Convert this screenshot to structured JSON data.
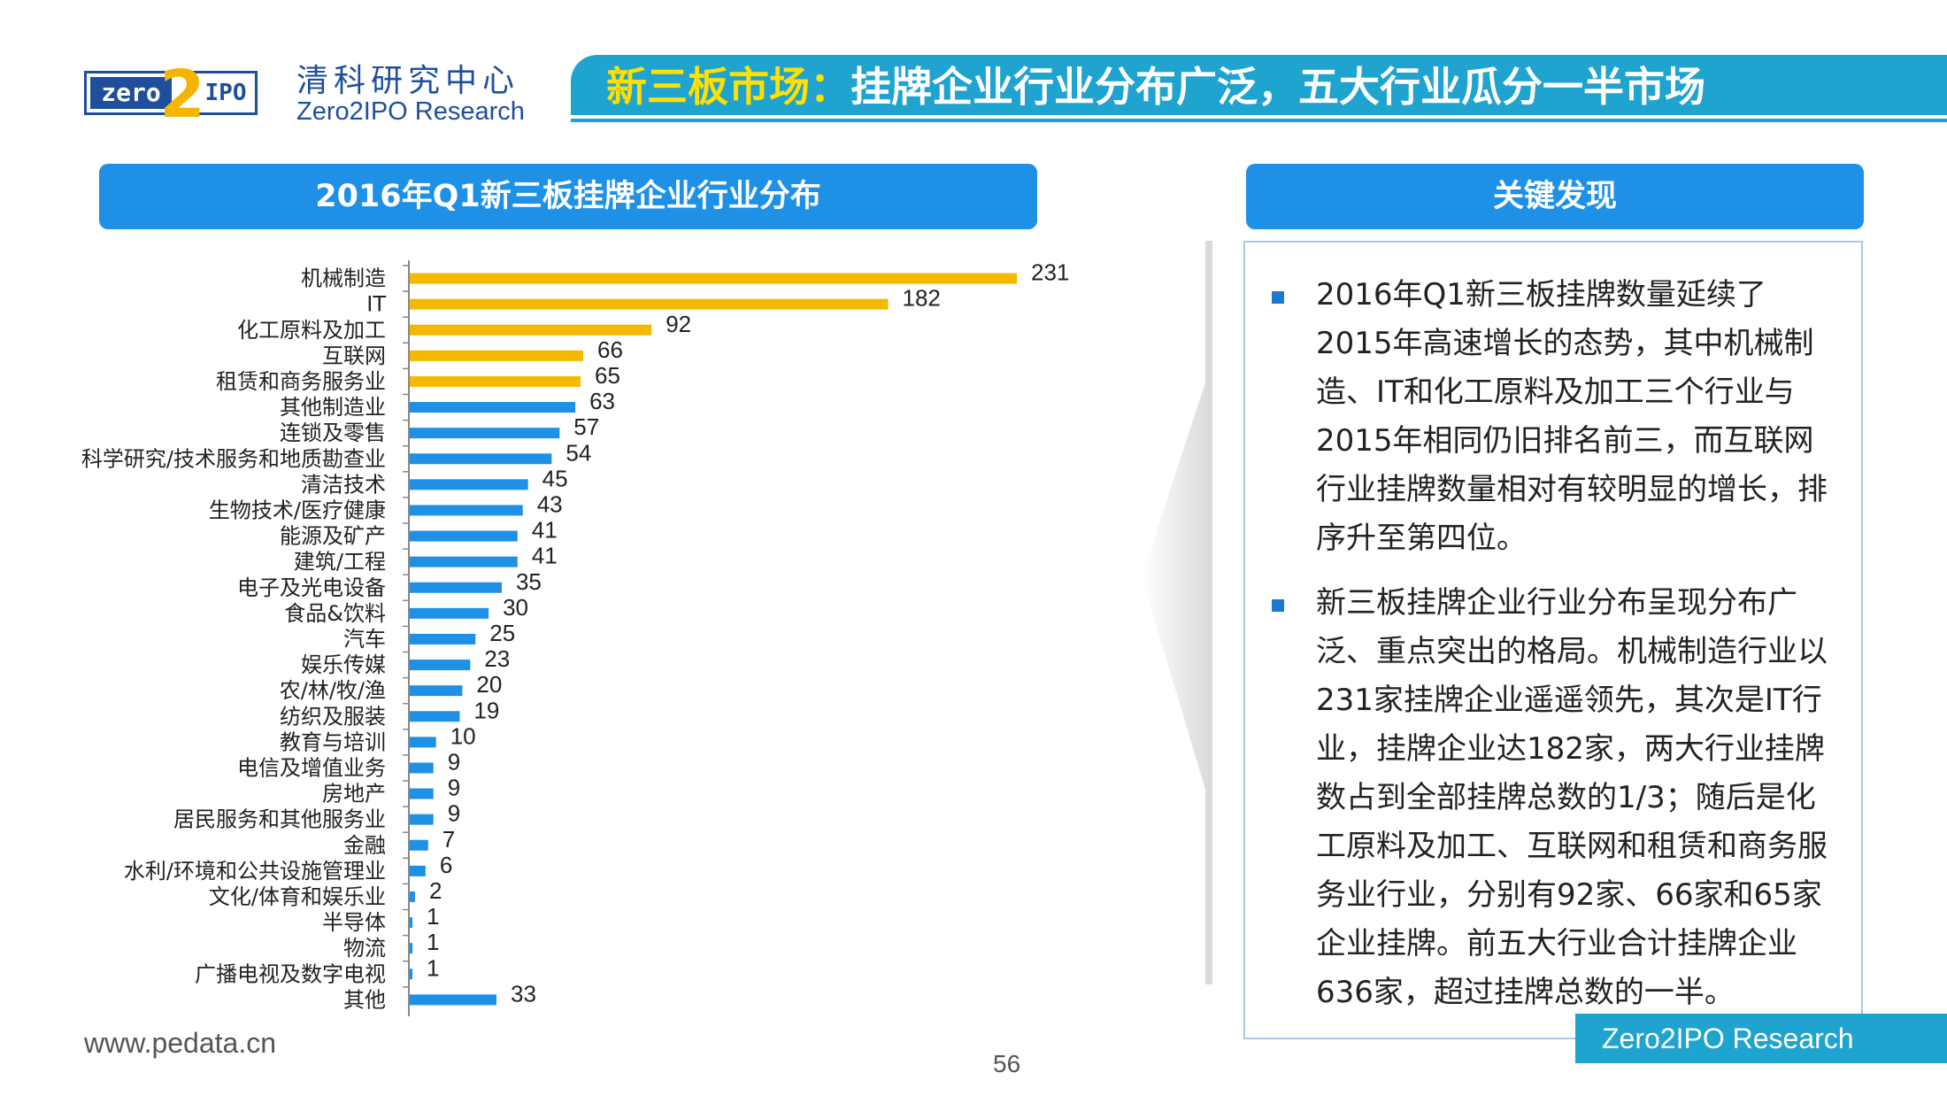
{
  "header": {
    "logo_left": "zero",
    "logo_mid": "2",
    "logo_right": "IPO",
    "brand_cn": "清科研究中心",
    "brand_en": "Zero2IPO Research",
    "title_highlight": "新三板市场：",
    "title_rest": "挂牌企业行业分布广泛，五大行业瓜分一半市场"
  },
  "chart_section": {
    "heading": "2016年Q1新三板挂牌企业行业分布"
  },
  "findings_section": {
    "heading": "关键发现",
    "bullets": [
      "2016年Q1新三板挂牌数量延续了2015年高速增长的态势，其中机械制造、IT和化工原料及加工三个行业与2015年相同仍旧排名前三，而互联网行业挂牌数量相对有较明显的增长，排序升至第四位。",
      "新三板挂牌企业行业分布呈现分布广泛、重点突出的格局。机械制造行业以231家挂牌企业遥遥领先，其次是IT行业，挂牌企业达182家，两大行业挂牌数占到全部挂牌总数的1/3；随后是化工原料及加工、互联网和租赁和商务服务业行业，分别有92家、66家和65家企业挂牌。前五大行业合计挂牌企业636家，超过挂牌总数的一半。"
    ]
  },
  "chart_data": {
    "type": "bar",
    "orientation": "horizontal",
    "title": "2016年Q1新三板挂牌企业行业分布",
    "categories": [
      "机械制造",
      "IT",
      "化工原料及加工",
      "互联网",
      "租赁和商务服务业",
      "其他制造业",
      "连锁及零售",
      "科学研究/技术服务和地质勘查业",
      "清洁技术",
      "生物技术/医疗健康",
      "能源及矿产",
      "建筑/工程",
      "电子及光电设备",
      "食品&饮料",
      "汽车",
      "娱乐传媒",
      "农/林/牧/渔",
      "纺织及服装",
      "教育与培训",
      "电信及增值业务",
      "房地产",
      "居民服务和其他服务业",
      "金融",
      "水利/环境和公共设施管理业",
      "文化/体育和娱乐业",
      "半导体",
      "物流",
      "广播电视及数字电视",
      "其他"
    ],
    "values": [
      231,
      182,
      92,
      66,
      65,
      63,
      57,
      54,
      45,
      43,
      41,
      41,
      35,
      30,
      25,
      23,
      20,
      19,
      10,
      9,
      9,
      9,
      7,
      6,
      2,
      1,
      1,
      1,
      33
    ],
    "highlight_top_n": 5,
    "colors": {
      "highlight": "#f5b800",
      "normal": "#1e90e5",
      "axis": "#888888"
    },
    "xlim": [
      0,
      231
    ]
  },
  "footer": {
    "url": "www.pedata.cn",
    "page": "56",
    "watermark": "Zero2IPO Research"
  }
}
